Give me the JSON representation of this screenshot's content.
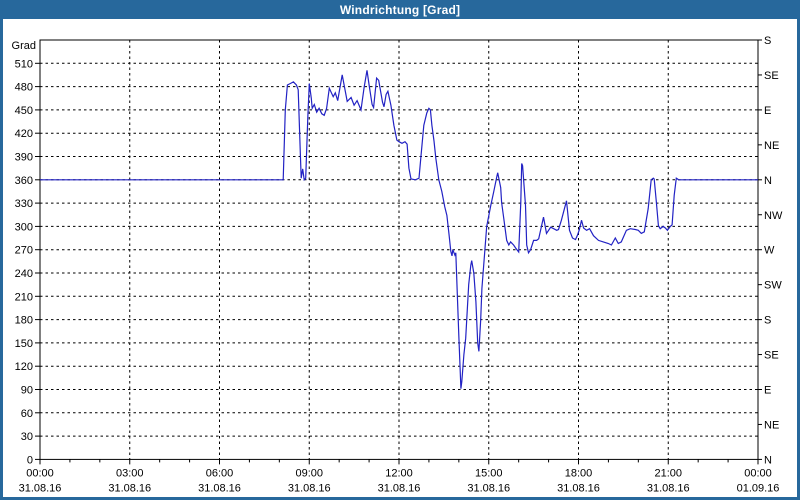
{
  "window": {
    "title": "Windrichtung [Grad]"
  },
  "colors": {
    "frame": "#27689c",
    "title_text": "#ffffff",
    "plot_bg": "#ffffff",
    "grid": "#000000",
    "axis": "#000000",
    "tick_text": "#000000",
    "line": "#2222c4"
  },
  "chart_data": {
    "type": "line",
    "title": "Windrichtung [Grad]",
    "ylabel_left": "Grad",
    "xlim_hours": [
      0,
      24
    ],
    "ylim": [
      0,
      540
    ],
    "grid": true,
    "grid_style": "dashed",
    "legend": "none",
    "y_ticks_left": [
      0,
      30,
      60,
      90,
      120,
      150,
      180,
      210,
      240,
      270,
      300,
      330,
      360,
      390,
      420,
      450,
      480,
      510
    ],
    "y_ticks_right": [
      {
        "deg": 540,
        "label": "S"
      },
      {
        "deg": 495,
        "label": "SE"
      },
      {
        "deg": 450,
        "label": "E"
      },
      {
        "deg": 405,
        "label": "NE"
      },
      {
        "deg": 360,
        "label": "N"
      },
      {
        "deg": 315,
        "label": "NW"
      },
      {
        "deg": 270,
        "label": "W"
      },
      {
        "deg": 225,
        "label": "SW"
      },
      {
        "deg": 180,
        "label": "S"
      },
      {
        "deg": 135,
        "label": "SE"
      },
      {
        "deg": 90,
        "label": "E"
      },
      {
        "deg": 45,
        "label": "NE"
      },
      {
        "deg": 0,
        "label": "N"
      }
    ],
    "x_ticks": [
      {
        "hour": 0,
        "time": "00:00",
        "date": "31.08.16"
      },
      {
        "hour": 3,
        "time": "03:00",
        "date": "31.08.16"
      },
      {
        "hour": 6,
        "time": "06:00",
        "date": "31.08.16"
      },
      {
        "hour": 9,
        "time": "09:00",
        "date": "31.08.16"
      },
      {
        "hour": 12,
        "time": "12:00",
        "date": "31.08.16"
      },
      {
        "hour": 15,
        "time": "15:00",
        "date": "31.08.16"
      },
      {
        "hour": 18,
        "time": "18:00",
        "date": "31.08.16"
      },
      {
        "hour": 21,
        "time": "21:00",
        "date": "31.08.16"
      },
      {
        "hour": 24,
        "time": "00:00",
        "date": "01.09.16"
      }
    ],
    "series": [
      {
        "name": "Windrichtung",
        "points": [
          [
            0,
            360
          ],
          [
            8.13,
            360
          ],
          [
            8.2,
            450
          ],
          [
            8.27,
            482
          ],
          [
            8.37,
            484
          ],
          [
            8.47,
            486
          ],
          [
            8.57,
            482
          ],
          [
            8.63,
            476
          ],
          [
            8.7,
            395
          ],
          [
            8.73,
            362
          ],
          [
            8.78,
            374
          ],
          [
            8.83,
            360
          ],
          [
            8.88,
            362
          ],
          [
            8.95,
            440
          ],
          [
            9.0,
            484
          ],
          [
            9.07,
            465
          ],
          [
            9.1,
            452
          ],
          [
            9.17,
            457
          ],
          [
            9.25,
            447
          ],
          [
            9.33,
            452
          ],
          [
            9.42,
            445
          ],
          [
            9.5,
            443
          ],
          [
            9.58,
            452
          ],
          [
            9.67,
            478
          ],
          [
            9.8,
            467
          ],
          [
            9.87,
            472
          ],
          [
            9.95,
            462
          ],
          [
            10.1,
            495
          ],
          [
            10.27,
            461
          ],
          [
            10.4,
            466
          ],
          [
            10.5,
            456
          ],
          [
            10.6,
            462
          ],
          [
            10.73,
            450
          ],
          [
            10.83,
            478
          ],
          [
            10.93,
            501
          ],
          [
            11.0,
            482
          ],
          [
            11.1,
            457
          ],
          [
            11.15,
            453
          ],
          [
            11.25,
            491
          ],
          [
            11.32,
            488
          ],
          [
            11.45,
            460
          ],
          [
            11.5,
            454
          ],
          [
            11.57,
            470
          ],
          [
            11.63,
            474
          ],
          [
            11.73,
            456
          ],
          [
            11.83,
            430
          ],
          [
            11.93,
            411
          ],
          [
            12.0,
            409
          ],
          [
            12.1,
            407
          ],
          [
            12.2,
            409
          ],
          [
            12.27,
            406
          ],
          [
            12.33,
            375
          ],
          [
            12.4,
            361
          ],
          [
            12.55,
            360
          ],
          [
            12.67,
            362
          ],
          [
            12.73,
            388
          ],
          [
            12.83,
            430
          ],
          [
            12.93,
            446
          ],
          [
            13.0,
            452
          ],
          [
            13.05,
            450
          ],
          [
            13.1,
            430
          ],
          [
            13.17,
            410
          ],
          [
            13.23,
            388
          ],
          [
            13.33,
            360
          ],
          [
            13.43,
            345
          ],
          [
            13.53,
            325
          ],
          [
            13.6,
            314
          ],
          [
            13.67,
            290
          ],
          [
            13.73,
            268
          ],
          [
            13.77,
            262
          ],
          [
            13.8,
            270
          ],
          [
            13.87,
            263
          ],
          [
            13.9,
            266
          ],
          [
            14.0,
            160
          ],
          [
            14.07,
            91
          ],
          [
            14.1,
            100
          ],
          [
            14.17,
            135
          ],
          [
            14.23,
            156
          ],
          [
            14.33,
            225
          ],
          [
            14.4,
            250
          ],
          [
            14.43,
            256
          ],
          [
            14.5,
            240
          ],
          [
            14.57,
            203
          ],
          [
            14.63,
            150
          ],
          [
            14.67,
            139
          ],
          [
            14.73,
            180
          ],
          [
            14.77,
            220
          ],
          [
            14.87,
            270
          ],
          [
            14.93,
            300
          ],
          [
            15.07,
            327
          ],
          [
            15.17,
            345
          ],
          [
            15.27,
            364
          ],
          [
            15.3,
            369
          ],
          [
            15.4,
            350
          ],
          [
            15.43,
            331
          ],
          [
            15.5,
            311
          ],
          [
            15.6,
            282
          ],
          [
            15.67,
            276
          ],
          [
            15.73,
            280
          ],
          [
            15.83,
            276
          ],
          [
            15.9,
            272
          ],
          [
            16.0,
            267
          ],
          [
            16.07,
            331
          ],
          [
            16.1,
            381
          ],
          [
            16.13,
            378
          ],
          [
            16.23,
            327
          ],
          [
            16.27,
            276
          ],
          [
            16.33,
            266
          ],
          [
            16.4,
            270
          ],
          [
            16.5,
            282
          ],
          [
            16.6,
            282
          ],
          [
            16.67,
            284
          ],
          [
            16.83,
            312
          ],
          [
            16.93,
            291
          ],
          [
            17.07,
            299
          ],
          [
            17.17,
            297
          ],
          [
            17.27,
            295
          ],
          [
            17.33,
            296
          ],
          [
            17.43,
            308
          ],
          [
            17.6,
            333
          ],
          [
            17.7,
            295
          ],
          [
            17.8,
            285
          ],
          [
            17.9,
            283
          ],
          [
            17.97,
            289
          ],
          [
            18.03,
            296
          ],
          [
            18.1,
            308
          ],
          [
            18.17,
            298
          ],
          [
            18.27,
            295
          ],
          [
            18.37,
            297
          ],
          [
            18.5,
            288
          ],
          [
            18.67,
            282
          ],
          [
            18.83,
            280
          ],
          [
            19.0,
            278
          ],
          [
            19.1,
            276
          ],
          [
            19.23,
            285
          ],
          [
            19.33,
            278
          ],
          [
            19.43,
            280
          ],
          [
            19.6,
            295
          ],
          [
            19.73,
            297
          ],
          [
            19.9,
            296
          ],
          [
            20.0,
            295
          ],
          [
            20.1,
            291
          ],
          [
            20.2,
            293
          ],
          [
            20.33,
            323
          ],
          [
            20.43,
            360
          ],
          [
            20.5,
            362
          ],
          [
            20.53,
            361
          ],
          [
            20.6,
            332
          ],
          [
            20.67,
            301
          ],
          [
            20.73,
            297
          ],
          [
            20.83,
            300
          ],
          [
            20.9,
            298
          ],
          [
            20.97,
            295
          ],
          [
            21.07,
            300
          ],
          [
            21.13,
            302
          ],
          [
            21.2,
            340
          ],
          [
            21.27,
            362
          ],
          [
            21.35,
            360
          ],
          [
            24,
            360
          ]
        ]
      }
    ]
  }
}
